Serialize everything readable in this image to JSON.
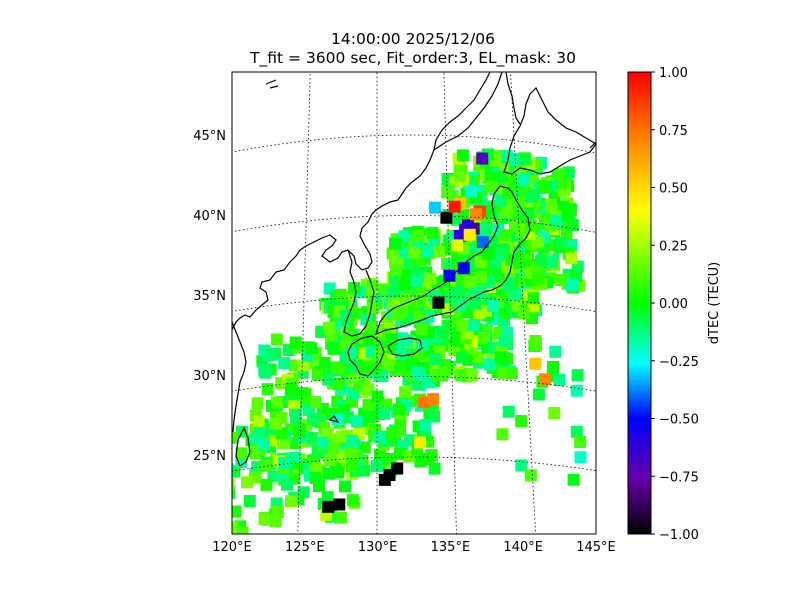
{
  "title": {
    "line1": "14:00:00 2025/12/06",
    "line2": "T_fit = 3600 sec, Fit_order:3, EL_mask: 30"
  },
  "map": {
    "projection": "conic",
    "lat_labels": [
      {
        "lat": 45,
        "label": "45°N"
      },
      {
        "lat": 40,
        "label": "40°N"
      },
      {
        "lat": 35,
        "label": "35°N"
      },
      {
        "lat": 30,
        "label": "30°N"
      },
      {
        "lat": 25,
        "label": "25°N"
      }
    ],
    "lon_labels": [
      {
        "lon": 120,
        "label": "120°E"
      },
      {
        "lon": 125,
        "label": "125°E"
      },
      {
        "lon": 130,
        "label": "130°E"
      },
      {
        "lon": 135,
        "label": "135°E"
      },
      {
        "lon": 140,
        "label": "140°E"
      },
      {
        "lon": 145,
        "label": "145°E"
      }
    ],
    "extent": {
      "lon": [
        120,
        145
      ],
      "lat": [
        20,
        49
      ]
    },
    "grid": "dotted"
  },
  "colorbar": {
    "label": "dTEC (TECU)",
    "range": [
      -1.0,
      1.0
    ],
    "ticks": [
      "1.00",
      "0.75",
      "0.50",
      "0.25",
      "0.00",
      "−0.25",
      "−0.50",
      "−0.75",
      "−1.00"
    ],
    "colormap": [
      "#000000",
      "#6600aa",
      "#0000ff",
      "#00ffff",
      "#00ff00",
      "#ffff00",
      "#ff8800",
      "#ff0000"
    ]
  },
  "chart_data": {
    "type": "heatmap",
    "title": "14:00:00 2025/12/06 / T_fit = 3600 sec, Fit_order:3, EL_mask: 30",
    "colorbar_label": "dTEC (TECU)",
    "value_range": [
      -1.0,
      1.0
    ],
    "points": [
      {
        "lon": 126.9,
        "lat": 22.1,
        "v": -1.0
      },
      {
        "lon": 127.6,
        "lat": 22.2,
        "v": -1.0
      },
      {
        "lon": 130.5,
        "lat": 23.6,
        "v": -1.0
      },
      {
        "lon": 130.8,
        "lat": 23.9,
        "v": -1.0
      },
      {
        "lon": 131.3,
        "lat": 24.3,
        "v": -1.0
      },
      {
        "lon": 134.2,
        "lat": 34.6,
        "v": -1.0
      },
      {
        "lon": 134.9,
        "lat": 39.9,
        "v": -1.0
      },
      {
        "lon": 136.8,
        "lat": 39.3,
        "v": -0.8
      },
      {
        "lon": 136.2,
        "lat": 39.2,
        "v": -0.7
      },
      {
        "lon": 136.4,
        "lat": 39.5,
        "v": -0.6
      },
      {
        "lon": 135.8,
        "lat": 38.8,
        "v": -0.6
      },
      {
        "lon": 137.6,
        "lat": 43.7,
        "v": -0.7
      },
      {
        "lon": 135.0,
        "lat": 36.3,
        "v": -0.5
      },
      {
        "lon": 136.0,
        "lat": 36.8,
        "v": -0.5
      },
      {
        "lon": 137.4,
        "lat": 38.5,
        "v": -0.4
      },
      {
        "lon": 134.1,
        "lat": 40.5,
        "v": -0.3
      },
      {
        "lon": 136.7,
        "lat": 41.6,
        "v": -0.2
      },
      {
        "lon": 143.2,
        "lat": 25.7,
        "v": -0.2
      },
      {
        "lon": 127.4,
        "lat": 27.5,
        "v": -0.2
      },
      {
        "lon": 128.4,
        "lat": 26.1,
        "v": -0.15
      },
      {
        "lon": 136.6,
        "lat": 33.3,
        "v": -0.15
      },
      {
        "lon": 135.9,
        "lat": 40.8,
        "v": 0.55
      },
      {
        "lon": 136.5,
        "lat": 38.9,
        "v": 0.45
      },
      {
        "lon": 135.6,
        "lat": 38.2,
        "v": 0.35
      },
      {
        "lon": 140.6,
        "lat": 31.2,
        "v": 0.55
      },
      {
        "lon": 132.8,
        "lat": 25.9,
        "v": 0.45
      },
      {
        "lon": 135.5,
        "lat": 40.6,
        "v": 0.95
      },
      {
        "lon": 137.3,
        "lat": 40.4,
        "v": 0.85
      },
      {
        "lon": 137.0,
        "lat": 40.2,
        "v": 0.7
      },
      {
        "lon": 141.2,
        "lat": 30.3,
        "v": 0.7
      },
      {
        "lon": 133.1,
        "lat": 28.4,
        "v": 0.75
      },
      {
        "lon": 133.7,
        "lat": 28.6,
        "v": 0.72
      }
    ]
  }
}
